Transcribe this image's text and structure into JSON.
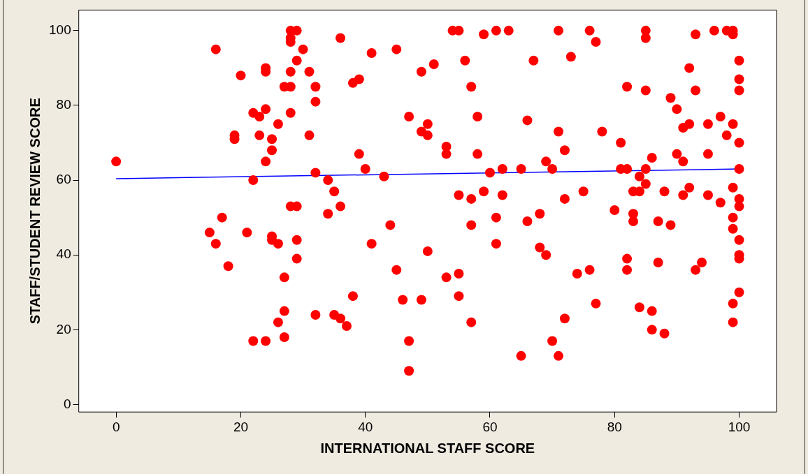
{
  "chart_data": {
    "type": "scatter",
    "xlabel": "INTERNATIONAL STAFF SCORE",
    "ylabel": "STAFF/STUDENT REVIEW SCORE",
    "xlim": [
      -6,
      106
    ],
    "ylim": [
      -2,
      105.5
    ],
    "xticks": [
      0,
      20,
      40,
      60,
      80,
      100
    ],
    "yticks": [
      0,
      20,
      40,
      60,
      80,
      100
    ],
    "grid": false,
    "legend": false,
    "marker": "circle",
    "series": [
      {
        "color": "#ff0000",
        "x": [
          0,
          15,
          16,
          16,
          17,
          18,
          19,
          19,
          20,
          21,
          22,
          22,
          22,
          23,
          23,
          24,
          24,
          24,
          24,
          24,
          25,
          25,
          25,
          25,
          26,
          26,
          26,
          27,
          27,
          27,
          27,
          28,
          28,
          28,
          28,
          28,
          28,
          28,
          29,
          29,
          29,
          29,
          29,
          30,
          31,
          31,
          32,
          32,
          32,
          32,
          34,
          34,
          35,
          35,
          36,
          36,
          36,
          37,
          38,
          38,
          39,
          39,
          40,
          41,
          41,
          43,
          44,
          45,
          45,
          46,
          47,
          47,
          47,
          49,
          49,
          49,
          50,
          50,
          50,
          51,
          53,
          53,
          53,
          54,
          55,
          55,
          55,
          55,
          56,
          57,
          57,
          57,
          57,
          58,
          58,
          59,
          59,
          60,
          61,
          61,
          61,
          62,
          62,
          63,
          65,
          65,
          66,
          66,
          67,
          68,
          68,
          69,
          69,
          70,
          70,
          71,
          71,
          71,
          72,
          72,
          72,
          73,
          74,
          75,
          76,
          76,
          77,
          77,
          78,
          80,
          81,
          81,
          82,
          82,
          82,
          82,
          83,
          83,
          83,
          84,
          84,
          84,
          85,
          85,
          85,
          85,
          85,
          86,
          86,
          86,
          87,
          87,
          88,
          88,
          89,
          89,
          90,
          90,
          91,
          91,
          91,
          92,
          92,
          92,
          93,
          93,
          93,
          94,
          95,
          95,
          95,
          96,
          97,
          97,
          98,
          98,
          99,
          99,
          99,
          99,
          99,
          99,
          99,
          99,
          100,
          100,
          100,
          100,
          100,
          100,
          100,
          100,
          100,
          100,
          100
        ],
        "values": [
          65,
          46,
          43,
          95,
          50,
          37,
          72,
          71,
          88,
          46,
          60,
          78,
          17,
          77,
          72,
          90,
          89,
          79,
          65,
          17,
          71,
          68,
          45,
          44,
          75,
          43,
          22,
          85,
          34,
          25,
          18,
          100,
          98,
          97,
          89,
          85,
          78,
          53,
          100,
          92,
          53,
          44,
          39,
          95,
          89,
          72,
          85,
          81,
          62,
          24,
          60,
          51,
          57,
          24,
          98,
          53,
          23,
          21,
          86,
          29,
          87,
          67,
          63,
          94,
          43,
          61,
          48,
          95,
          36,
          28,
          77,
          17,
          9,
          89,
          73,
          28,
          75,
          72,
          41,
          91,
          69,
          67,
          34,
          100,
          100,
          56,
          35,
          29,
          92,
          85,
          55,
          48,
          22,
          77,
          67,
          99,
          57,
          62,
          100,
          50,
          43,
          63,
          56,
          100,
          63,
          13,
          76,
          49,
          92,
          51,
          42,
          65,
          40,
          63,
          17,
          100,
          73,
          13,
          68,
          55,
          23,
          93,
          35,
          57,
          100,
          36,
          97,
          27,
          73,
          52,
          70,
          63,
          85,
          63,
          39,
          36,
          57,
          51,
          49,
          61,
          57,
          26,
          100,
          98,
          84,
          63,
          59,
          66,
          25,
          20,
          49,
          38,
          57,
          19,
          82,
          48,
          79,
          67,
          74,
          65,
          56,
          90,
          75,
          58,
          99,
          84,
          36,
          38,
          75,
          67,
          56,
          100,
          77,
          54,
          100,
          72,
          100,
          99,
          75,
          58,
          50,
          47,
          27,
          22,
          92,
          87,
          84,
          70,
          63,
          55,
          53,
          44,
          40,
          39,
          30
        ]
      },
      {
        "type": "line",
        "color": "#0000ff",
        "marker": "none",
        "x": [
          0,
          100
        ],
        "values": [
          60.4,
          63
        ]
      }
    ]
  }
}
